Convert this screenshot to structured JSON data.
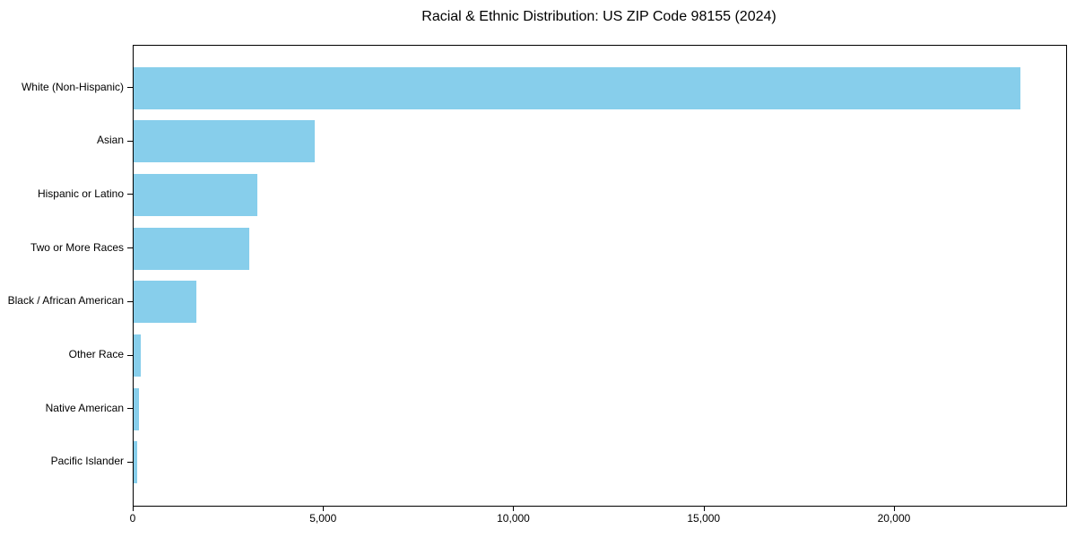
{
  "chart_data": {
    "type": "bar",
    "orientation": "horizontal",
    "title": "Racial & Ethnic Distribution: US ZIP Code 98155 (2024)",
    "categories": [
      "White (Non-Hispanic)",
      "Asian",
      "Hispanic or Latino",
      "Two or More Races",
      "Black / African American",
      "Other Race",
      "Native American",
      "Pacific Islander"
    ],
    "values": [
      23300,
      4750,
      3250,
      3050,
      1660,
      190,
      150,
      95
    ],
    "xlabel": "",
    "ylabel": "",
    "xlim": [
      0,
      24500
    ],
    "xticks": [
      0,
      5000,
      10000,
      15000,
      20000
    ],
    "xtick_labels": [
      "0",
      "5,000",
      "10,000",
      "15,000",
      "20,000"
    ],
    "bar_color": "#87CEEB",
    "text_color": "#000000",
    "grid": false,
    "legend": null
  }
}
